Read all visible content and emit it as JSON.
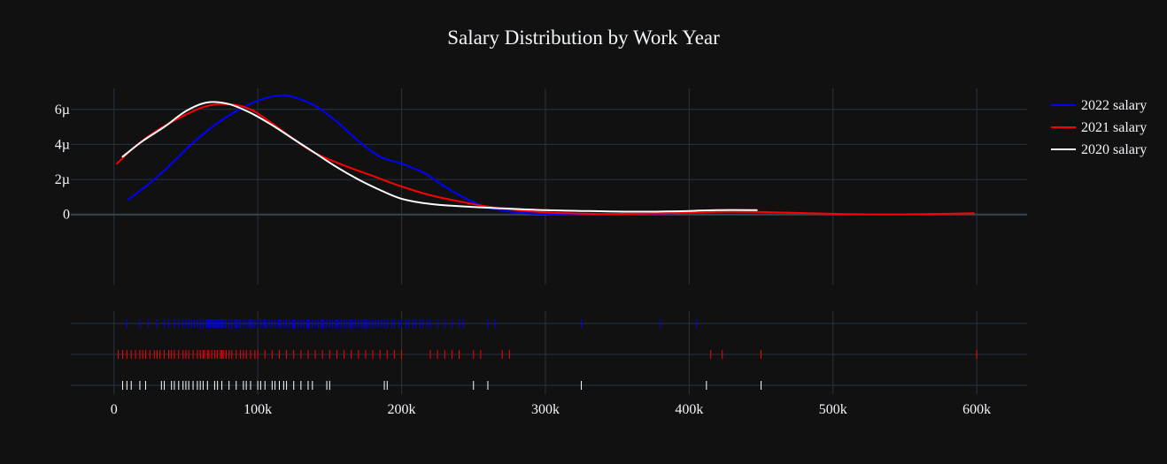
{
  "chart_data": {
    "type": "line",
    "title": "Salary Distribution by Work Year",
    "xlim": [
      -30000,
      635000
    ],
    "ylim": [
      -4e-06,
      7.2e-06
    ],
    "x_ticks": [
      {
        "value": 0,
        "label": "0"
      },
      {
        "value": 100000,
        "label": "100k"
      },
      {
        "value": 200000,
        "label": "200k"
      },
      {
        "value": 300000,
        "label": "300k"
      },
      {
        "value": 400000,
        "label": "400k"
      },
      {
        "value": 500000,
        "label": "500k"
      },
      {
        "value": 600000,
        "label": "600k"
      }
    ],
    "y_ticks": [
      {
        "value": 0,
        "label": "0"
      },
      {
        "value": 2e-06,
        "label": "2µ"
      },
      {
        "value": 4e-06,
        "label": "4µ"
      },
      {
        "value": 6e-06,
        "label": "6µ"
      }
    ],
    "grid": true,
    "legend": "top-right",
    "series": [
      {
        "name": "2022 salary",
        "color": "#0000ff",
        "x": [
          10000,
          25000,
          40000,
          55000,
          70000,
          85000,
          100000,
          115000,
          125000,
          140000,
          155000,
          170000,
          185000,
          200000,
          215000,
          230000,
          245000,
          260000,
          280000,
          300000,
          330000,
          360000,
          380000,
          405000
        ],
        "y": [
          8.5e-07,
          1.8e-06,
          2.9e-06,
          4.1e-06,
          5.1e-06,
          5.9e-06,
          6.5e-06,
          6.8e-06,
          6.7e-06,
          6.2e-06,
          5.3e-06,
          4.2e-06,
          3.3e-06,
          2.9e-06,
          2.4e-06,
          1.6e-06,
          9e-07,
          4e-07,
          1.2e-07,
          3e-08,
          1e-08,
          3e-08,
          5e-08,
          1.2e-07
        ]
      },
      {
        "name": "2021 salary",
        "color": "#ff0000",
        "x": [
          2000,
          15000,
          30000,
          50000,
          65000,
          80000,
          95000,
          110000,
          125000,
          140000,
          160000,
          180000,
          200000,
          220000,
          240000,
          260000,
          280000,
          300000,
          330000,
          360000,
          390000,
          420000,
          450000,
          480000,
          510000,
          540000,
          570000,
          598000
        ],
        "y": [
          2.9e-06,
          3.9e-06,
          4.8e-06,
          5.7e-06,
          6.2e-06,
          6.3e-06,
          6e-06,
          5.2e-06,
          4.3e-06,
          3.5e-06,
          2.8e-06,
          2.2e-06,
          1.6e-06,
          1.1e-06,
          7.5e-07,
          4.5e-07,
          2.5e-07,
          1.2e-07,
          4e-08,
          4e-08,
          8e-08,
          1.5e-07,
          1.4e-07,
          8e-08,
          2e-08,
          1e-08,
          3e-08,
          7e-08
        ]
      },
      {
        "name": "2020 salary",
        "color": "#ffffff",
        "x": [
          6000,
          20000,
          35000,
          50000,
          65000,
          80000,
          95000,
          110000,
          125000,
          140000,
          155000,
          170000,
          185000,
          200000,
          220000,
          245000,
          270000,
          300000,
          330000,
          360000,
          390000,
          420000,
          447000
        ],
        "y": [
          3.3e-06,
          4.2e-06,
          5e-06,
          5.9e-06,
          6.4e-06,
          6.3e-06,
          5.8e-06,
          5.1e-06,
          4.3e-06,
          3.5e-06,
          2.7e-06,
          2e-06,
          1.4e-06,
          9e-07,
          6e-07,
          4.5e-07,
          3.5e-07,
          2.5e-07,
          2e-07,
          1.6e-07,
          1.8e-07,
          2.5e-07,
          2.5e-07
        ]
      }
    ],
    "rug": [
      {
        "name": "2022 salary",
        "color": "#0000ff",
        "values": [
          9000,
          18000,
          24000,
          30000,
          35000,
          38000,
          42000,
          45000,
          48000,
          50000,
          52000,
          54000,
          56000,
          58000,
          60000,
          62000,
          64000,
          65000,
          66000,
          67000,
          68000,
          69000,
          70000,
          71000,
          72000,
          73000,
          74000,
          75000,
          76000,
          78000,
          80000,
          82000,
          84000,
          85000,
          86000,
          88000,
          90000,
          92000,
          94000,
          95000,
          96000,
          98000,
          100000,
          102000,
          104000,
          105000,
          106000,
          108000,
          110000,
          112000,
          114000,
          115000,
          116000,
          118000,
          120000,
          122000,
          124000,
          125000,
          126000,
          128000,
          130000,
          132000,
          134000,
          135000,
          136000,
          138000,
          140000,
          142000,
          144000,
          145000,
          146000,
          148000,
          150000,
          152000,
          154000,
          155000,
          156000,
          158000,
          160000,
          162000,
          164000,
          165000,
          166000,
          168000,
          170000,
          172000,
          174000,
          175000,
          176000,
          178000,
          180000,
          182000,
          184000,
          186000,
          188000,
          190000,
          193000,
          195000,
          198000,
          200000,
          203000,
          205000,
          208000,
          210000,
          213000,
          215000,
          218000,
          220000,
          225000,
          230000,
          235000,
          240000,
          243000,
          260000,
          265000,
          325000,
          380000,
          405000
        ]
      },
      {
        "name": "2021 salary",
        "color": "#ff0000",
        "values": [
          3000,
          6000,
          9000,
          12000,
          15000,
          18000,
          20000,
          22000,
          25000,
          28000,
          30000,
          32000,
          35000,
          38000,
          40000,
          42000,
          45000,
          48000,
          50000,
          52000,
          55000,
          58000,
          60000,
          62000,
          63000,
          65000,
          66000,
          68000,
          70000,
          72000,
          74000,
          75000,
          76000,
          78000,
          80000,
          82000,
          85000,
          88000,
          90000,
          92000,
          95000,
          98000,
          100000,
          105000,
          110000,
          115000,
          120000,
          125000,
          130000,
          135000,
          140000,
          145000,
          150000,
          155000,
          160000,
          165000,
          170000,
          175000,
          180000,
          185000,
          190000,
          195000,
          200000,
          220000,
          225000,
          230000,
          235000,
          240000,
          250000,
          255000,
          270000,
          275000,
          415000,
          423000,
          450000,
          600000
        ]
      },
      {
        "name": "2020 salary",
        "color": "#ffffff",
        "values": [
          6000,
          9000,
          12000,
          18000,
          22000,
          33000,
          35000,
          40000,
          42000,
          45000,
          48000,
          50000,
          52000,
          55000,
          58000,
          60000,
          62000,
          65000,
          70000,
          72000,
          75000,
          80000,
          85000,
          90000,
          92000,
          95000,
          100000,
          102000,
          105000,
          110000,
          112000,
          115000,
          118000,
          120000,
          125000,
          130000,
          135000,
          138000,
          148000,
          150000,
          188000,
          190000,
          250000,
          260000,
          325000,
          412000,
          450000
        ]
      }
    ]
  }
}
